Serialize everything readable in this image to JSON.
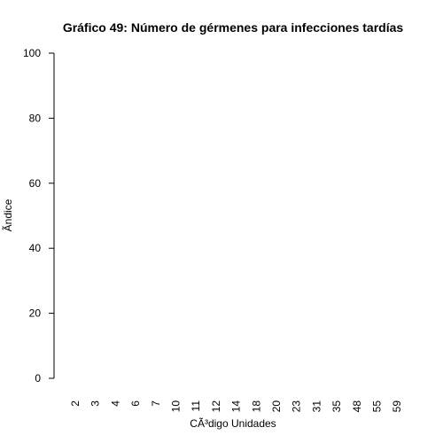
{
  "chart_data": {
    "type": "bar",
    "title": "Gráfico 49: Número de gérmenes para infecciones tardías",
    "xlabel": "CÃ³digo Unidades",
    "ylabel": "Ãndice",
    "categories": [
      "2",
      "3",
      "4",
      "6",
      "7",
      "10",
      "11",
      "12",
      "14",
      "18",
      "20",
      "23",
      "31",
      "35",
      "48",
      "55",
      "59"
    ],
    "values": [
      null,
      null,
      null,
      null,
      null,
      null,
      null,
      null,
      null,
      null,
      null,
      null,
      null,
      null,
      null,
      null,
      null
    ],
    "ylim": [
      0,
      100
    ],
    "yticks": [
      0,
      20,
      40,
      60,
      80,
      100
    ],
    "grid": false,
    "legend": "none"
  }
}
